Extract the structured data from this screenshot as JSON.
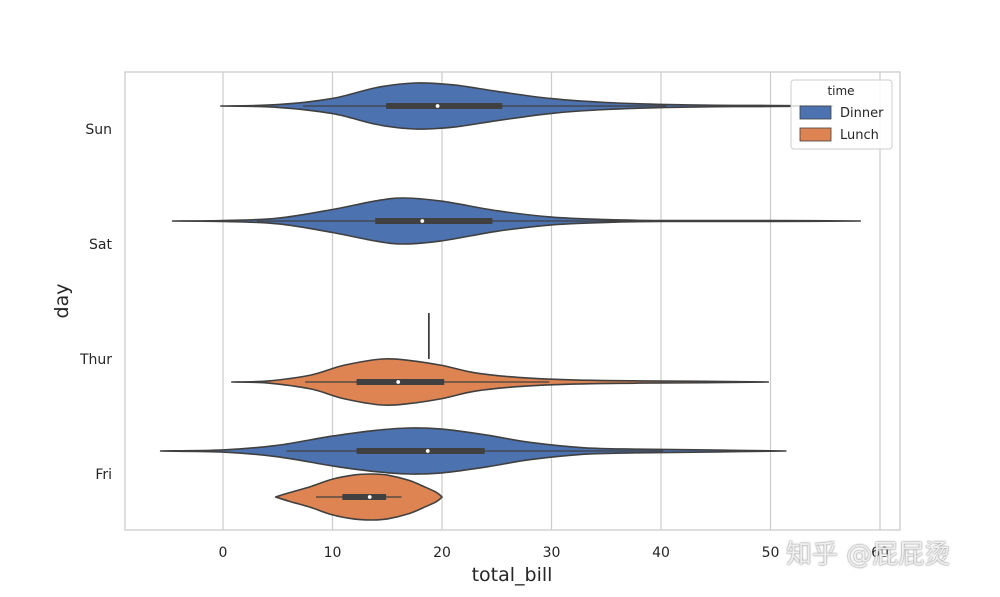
{
  "chart_data": {
    "type": "violin",
    "orientation": "horizontal",
    "xlabel": "total_bill",
    "ylabel": "day",
    "xlim": [
      -9,
      62
    ],
    "x_ticks": [
      0,
      10,
      20,
      30,
      40,
      50,
      60
    ],
    "categories": [
      "Sun",
      "Sat",
      "Thur",
      "Fri"
    ],
    "grid": "vertical",
    "legend": {
      "title": "time",
      "position": "top-right",
      "entries": [
        {
          "name": "Dinner",
          "color": "#4c72b0"
        },
        {
          "name": "Lunch",
          "color": "#dd8452"
        }
      ]
    },
    "violins": [
      {
        "day": "Sun",
        "time": "Dinner",
        "range": [
          -0.2,
          55.7
        ],
        "whisker": [
          7.3,
          40.5
        ],
        "iqr": [
          14.9,
          25.5
        ],
        "median": 19.6,
        "peak": 17.5,
        "profile": [
          [
            -0.2,
            0.0
          ],
          [
            5,
            0.06
          ],
          [
            10,
            0.33
          ],
          [
            14,
            0.8
          ],
          [
            17.5,
            1.0
          ],
          [
            21,
            0.92
          ],
          [
            25,
            0.64
          ],
          [
            30,
            0.32
          ],
          [
            35,
            0.15
          ],
          [
            40,
            0.07
          ],
          [
            45,
            0.03
          ],
          [
            50,
            0.02
          ],
          [
            55.7,
            0.0
          ]
        ]
      },
      {
        "day": "Sat",
        "time": "Dinner",
        "range": [
          -4.6,
          58.2
        ],
        "whisker": [
          3.1,
          39.4
        ],
        "iqr": [
          13.9,
          24.6
        ],
        "median": 18.2,
        "peak": 16.5,
        "profile": [
          [
            -4.6,
            0.0
          ],
          [
            0,
            0.02
          ],
          [
            5,
            0.12
          ],
          [
            10,
            0.5
          ],
          [
            14,
            0.88
          ],
          [
            16.5,
            1.0
          ],
          [
            20,
            0.86
          ],
          [
            25,
            0.45
          ],
          [
            30,
            0.17
          ],
          [
            35,
            0.06
          ],
          [
            40,
            0.02
          ],
          [
            45,
            0.02
          ],
          [
            50,
            0.02
          ],
          [
            58.2,
            0.0
          ]
        ]
      },
      {
        "day": "Thur",
        "time": "Lunch",
        "range": [
          0.8,
          49.8
        ],
        "whisker": [
          7.5,
          29.8
        ],
        "iqr": [
          12.2,
          20.2
        ],
        "median": 16.0,
        "peak": 14.5,
        "profile": [
          [
            0.8,
            0.0
          ],
          [
            4,
            0.04
          ],
          [
            8,
            0.3
          ],
          [
            11,
            0.72
          ],
          [
            14.5,
            1.0
          ],
          [
            17,
            0.94
          ],
          [
            20,
            0.72
          ],
          [
            23,
            0.4
          ],
          [
            27,
            0.2
          ],
          [
            32,
            0.09
          ],
          [
            38,
            0.05
          ],
          [
            44,
            0.03
          ],
          [
            49.8,
            0.0
          ]
        ]
      },
      {
        "day": "Thur",
        "time": "Dinner",
        "range": [
          18.8,
          18.8
        ],
        "whisker": [
          18.8,
          18.8
        ],
        "iqr": [
          18.8,
          18.8
        ],
        "median": 18.8,
        "peak": 18.8,
        "profile": []
      },
      {
        "day": "Fri",
        "time": "Dinner",
        "range": [
          -5.7,
          51.4
        ],
        "whisker": [
          5.8,
          40.2
        ],
        "iqr": [
          12.2,
          23.9
        ],
        "median": 18.7,
        "peak": 17.0,
        "profile": [
          [
            -5.7,
            0.0
          ],
          [
            0,
            0.05
          ],
          [
            5,
            0.25
          ],
          [
            10,
            0.65
          ],
          [
            14,
            0.9
          ],
          [
            17,
            1.0
          ],
          [
            20,
            0.95
          ],
          [
            24,
            0.7
          ],
          [
            28,
            0.38
          ],
          [
            33,
            0.14
          ],
          [
            38,
            0.08
          ],
          [
            45,
            0.04
          ],
          [
            51.4,
            0.0
          ]
        ]
      },
      {
        "day": "Fri",
        "time": "Lunch",
        "range": [
          4.8,
          20.0
        ],
        "whisker": [
          8.5,
          16.3
        ],
        "iqr": [
          10.9,
          14.9
        ],
        "median": 13.4,
        "peak": 13.5,
        "profile": [
          [
            4.8,
            0.0
          ],
          [
            6,
            0.18
          ],
          [
            8,
            0.45
          ],
          [
            10,
            0.78
          ],
          [
            12,
            0.96
          ],
          [
            13.5,
            1.0
          ],
          [
            15,
            0.95
          ],
          [
            17,
            0.72
          ],
          [
            18.5,
            0.42
          ],
          [
            19.5,
            0.2
          ],
          [
            20,
            0.0
          ]
        ]
      }
    ]
  },
  "watermark": "知乎 @屁屁烫"
}
